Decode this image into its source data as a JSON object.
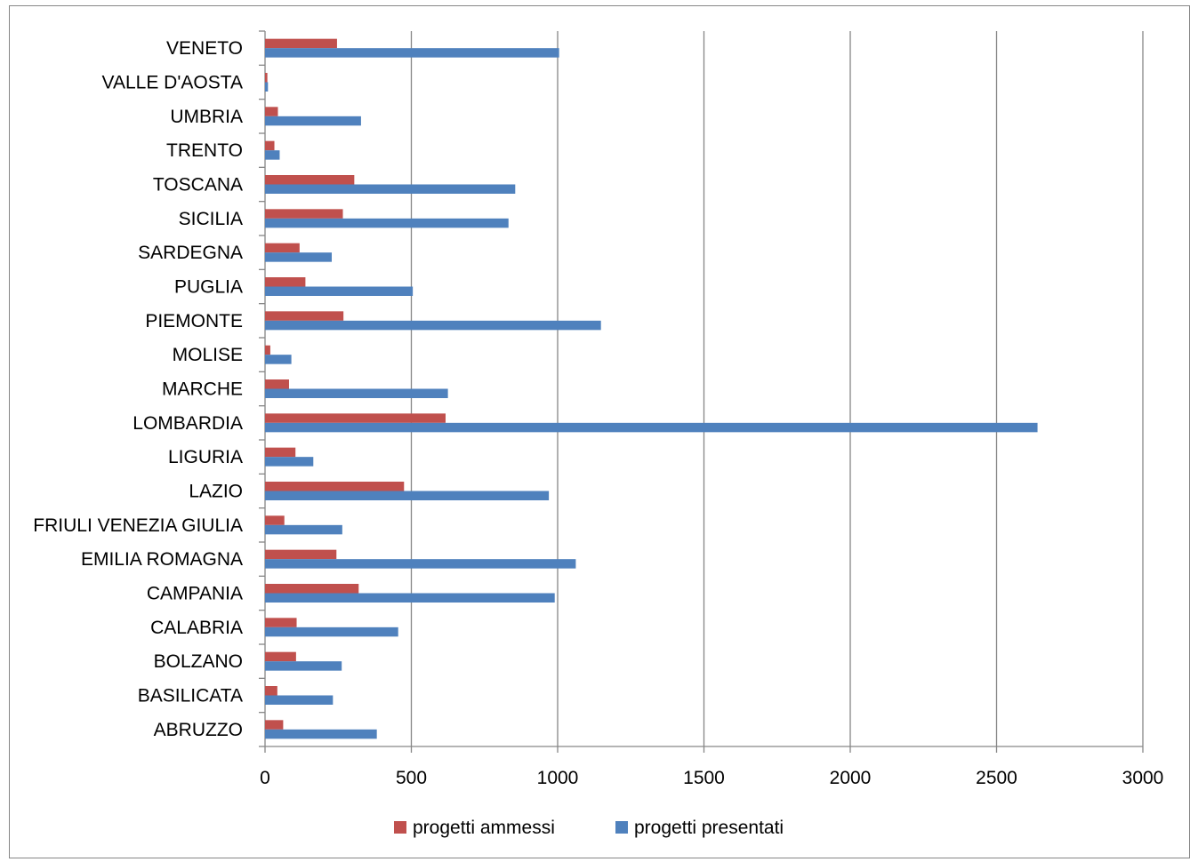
{
  "chart_data": {
    "type": "bar",
    "orientation": "horizontal",
    "categories": [
      "ABRUZZO",
      "BASILICATA",
      "BOLZANO",
      "CALABRIA",
      "CAMPANIA",
      "EMILIA ROMAGNA",
      "FRIULI VENEZIA GIULIA",
      "LAZIO",
      "LIGURIA",
      "LOMBARDIA",
      "MARCHE",
      "MOLISE",
      "PIEMONTE",
      "PUGLIA",
      "SARDEGNA",
      "SICILIA",
      "TOSCANA",
      "TRENTO",
      "UMBRIA",
      "VALLE D'AOSTA",
      "VENETO"
    ],
    "series": [
      {
        "name": "progetti ammessi",
        "color": "#C0504D",
        "values": [
          62,
          42,
          106,
          108,
          320,
          244,
          66,
          475,
          104,
          617,
          82,
          18,
          268,
          138,
          118,
          266,
          305,
          32,
          44,
          8,
          246
        ]
      },
      {
        "name": "progetti presentati",
        "color": "#4F81BD",
        "values": [
          382,
          232,
          262,
          455,
          990,
          1062,
          264,
          970,
          165,
          2640,
          625,
          90,
          1148,
          505,
          228,
          832,
          855,
          50,
          328,
          10,
          1005
        ]
      }
    ],
    "xlim": [
      0,
      3000
    ],
    "xticks": [
      "0",
      "500",
      "1000",
      "1500",
      "2000",
      "2500",
      "3000"
    ],
    "grid": "vertical",
    "legend": "bottom"
  }
}
